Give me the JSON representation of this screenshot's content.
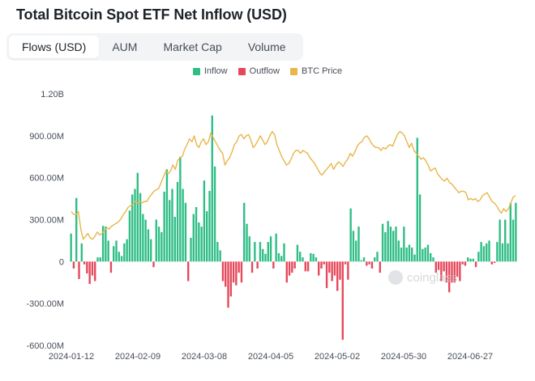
{
  "title": "Total Bitcoin Spot ETF Net Inflow (USD)",
  "tabs": [
    {
      "label": "Flows (USD)",
      "active": true
    },
    {
      "label": "AUM",
      "active": false
    },
    {
      "label": "Market Cap",
      "active": false
    },
    {
      "label": "Volume",
      "active": false
    }
  ],
  "legend": [
    {
      "label": "Inflow",
      "color": "#2ebd85"
    },
    {
      "label": "Outflow",
      "color": "#e5485a"
    },
    {
      "label": "BTC Price",
      "color": "#e8b64a"
    }
  ],
  "watermark": "coinglass",
  "chart_data": {
    "type": "bar",
    "title": "Total Bitcoin Spot ETF Net Inflow (USD)",
    "y_ticks": [
      "1.20B",
      "900.00M",
      "600.00M",
      "300.00M",
      "0",
      "-300.00M",
      "-600.00M"
    ],
    "x_ticks": [
      "2024-01-12",
      "2024-02-09",
      "2024-03-08",
      "2024-04-05",
      "2024-05-02",
      "2024-05-30",
      "2024-06-27"
    ],
    "ylim_millions": [
      -600,
      1200
    ],
    "flows_millions": [
      200,
      -50,
      455,
      -125,
      130,
      -20,
      -85,
      -160,
      -100,
      -140,
      30,
      30,
      255,
      250,
      150,
      -80,
      110,
      150,
      70,
      40,
      130,
      160,
      365,
      480,
      520,
      635,
      490,
      340,
      300,
      230,
      160,
      -40,
      300,
      250,
      210,
      500,
      660,
      440,
      520,
      320,
      570,
      750,
      520,
      420,
      -140,
      170,
      340,
      390,
      280,
      250,
      580,
      360,
      505,
      1045,
      680,
      140,
      80,
      -140,
      -180,
      -330,
      -250,
      -150,
      -170,
      -80,
      -150,
      420,
      270,
      180,
      -80,
      140,
      -50,
      140,
      90,
      55,
      140,
      180,
      -50,
      200,
      60,
      40,
      130,
      -150,
      -100,
      -80,
      -50,
      120,
      70,
      30,
      -70,
      -70,
      60,
      55,
      30,
      -100,
      -50,
      -20,
      -190,
      -80,
      -140,
      -100,
      -210,
      -130,
      -560,
      -20,
      -130,
      380,
      220,
      150,
      250,
      10,
      30,
      -30,
      -20,
      -50,
      30,
      70,
      -80,
      270,
      210,
      290,
      250,
      220,
      250,
      150,
      100,
      250,
      100,
      120,
      100,
      50,
      885,
      480,
      90,
      100,
      120,
      60,
      30,
      -80,
      -60,
      -140,
      -70,
      -150,
      -220,
      -150,
      -150,
      -110,
      -140,
      -20,
      -30,
      30,
      20,
      20,
      -40,
      70,
      140,
      110,
      130,
      150,
      -20,
      -10,
      140,
      300,
      130,
      300,
      130,
      420,
      300,
      420
    ],
    "btc_price_rel": [
      0.38,
      0.36,
      0.36,
      0.38,
      0.26,
      0.19,
      0.21,
      0.23,
      0.2,
      0.19,
      0.21,
      0.24,
      0.22,
      0.23,
      0.25,
      0.27,
      0.26,
      0.28,
      0.29,
      0.3,
      0.31,
      0.33,
      0.36,
      0.38,
      0.41,
      0.42,
      0.43,
      0.45,
      0.44,
      0.45,
      0.44,
      0.45,
      0.45,
      0.48,
      0.5,
      0.52,
      0.53,
      0.54,
      0.58,
      0.62,
      0.66,
      0.64,
      0.66,
      0.7,
      0.67,
      0.73,
      0.75,
      0.76,
      0.81,
      0.84,
      0.88,
      0.86,
      0.9,
      0.84,
      0.82,
      0.86,
      0.88,
      0.84,
      0.86,
      0.92,
      0.89,
      0.86,
      0.83,
      0.8,
      0.78,
      0.7,
      0.73,
      0.75,
      0.79,
      0.84,
      0.86,
      0.9,
      0.91,
      0.88,
      0.9,
      0.91,
      0.87,
      0.82,
      0.84,
      0.87,
      0.9,
      0.87,
      0.84,
      0.86,
      0.9,
      0.93,
      0.91,
      0.84,
      0.8,
      0.76,
      0.73,
      0.7,
      0.71,
      0.74,
      0.78,
      0.8,
      0.8,
      0.78,
      0.8,
      0.79,
      0.78,
      0.75,
      0.73,
      0.71,
      0.68,
      0.65,
      0.63,
      0.65,
      0.67,
      0.69,
      0.71,
      0.67,
      0.7,
      0.72,
      0.71,
      0.69,
      0.72,
      0.74,
      0.78,
      0.76,
      0.79,
      0.83,
      0.85,
      0.86,
      0.89,
      0.9,
      0.88,
      0.85,
      0.83,
      0.82,
      0.82,
      0.8,
      0.82,
      0.81,
      0.83,
      0.84,
      0.83,
      0.87,
      0.91,
      0.93,
      0.92,
      0.9,
      0.86,
      0.82,
      0.85,
      0.8,
      0.78,
      0.76,
      0.74,
      0.75,
      0.73,
      0.7,
      0.66,
      0.67,
      0.68,
      0.64,
      0.62,
      0.6,
      0.59,
      0.61,
      0.58,
      0.57,
      0.55,
      0.53,
      0.51,
      0.52,
      0.52,
      0.51,
      0.46,
      0.47,
      0.46,
      0.47,
      0.45,
      0.46,
      0.49,
      0.5,
      0.51,
      0.48,
      0.45,
      0.44,
      0.42,
      0.39,
      0.37,
      0.4,
      0.38,
      0.4,
      0.44,
      0.48,
      0.49
    ],
    "grid": false,
    "legend_position": "top-center"
  }
}
